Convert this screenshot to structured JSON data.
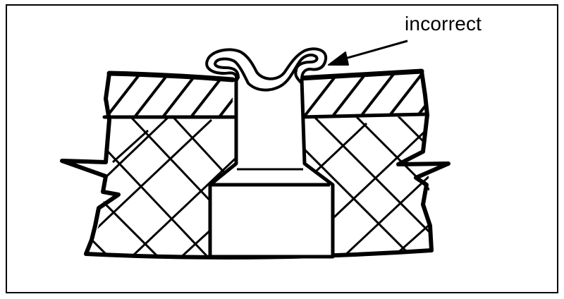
{
  "figure": {
    "callout": {
      "label": "incorrect"
    },
    "colors": {
      "ink": "#000000",
      "paper": "#ffffff"
    }
  }
}
